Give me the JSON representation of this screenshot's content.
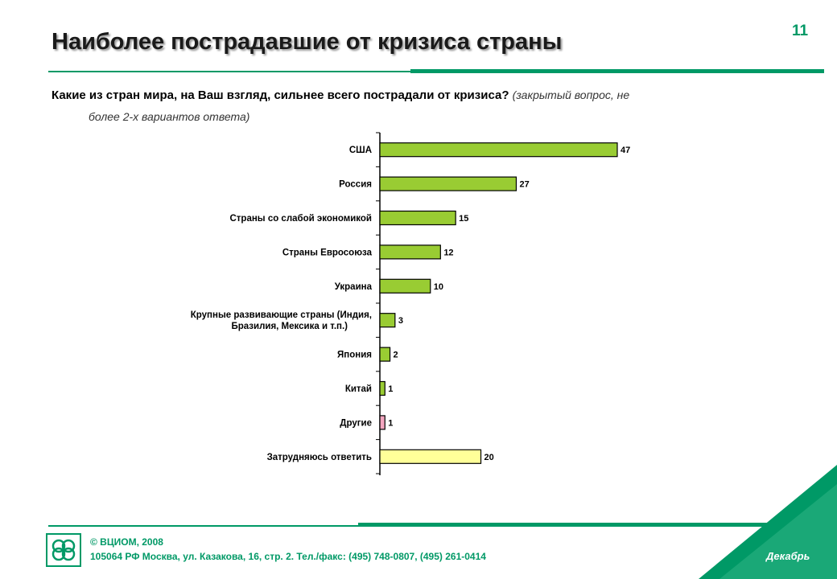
{
  "header": {
    "title": "Наиболее пострадавшие от кризиса страны",
    "page_number": "11"
  },
  "question": {
    "text": "Какие из стран мира, на Ваш взгляд, сильнее всего пострадали от кризиса?",
    "note_line1": "(закрытый вопрос, не",
    "note_line2": "более 2-х вариантов ответа)"
  },
  "chart_data": {
    "type": "bar",
    "orientation": "horizontal",
    "categories": [
      "США",
      "Россия",
      "Страны со слабой экономикой",
      "Страны Евросоюза",
      "Украина",
      "Крупные развивающие страны (Индия, Бразилия, Мексика и т.п.)",
      "Япония",
      "Китай",
      "Другие",
      "Затрудняюсь ответить"
    ],
    "values": [
      47,
      27,
      15,
      12,
      10,
      3,
      2,
      1,
      1,
      20
    ],
    "colors": [
      "#99cc33",
      "#99cc33",
      "#99cc33",
      "#99cc33",
      "#99cc33",
      "#99cc33",
      "#99cc33",
      "#99cc33",
      "#f4a6c0",
      "#ffff99"
    ],
    "title": "",
    "xlabel": "",
    "ylabel": "",
    "xlim": [
      0,
      50
    ]
  },
  "footer": {
    "copyright": "© ВЦИОМ, 2008",
    "address": "105064 РФ Москва, ул. Казакова, 16, стр. 2. Тел./факс: (495) 748-0807, (495) 261-0414",
    "month": "Декабрь",
    "accent_color": "#009966"
  }
}
